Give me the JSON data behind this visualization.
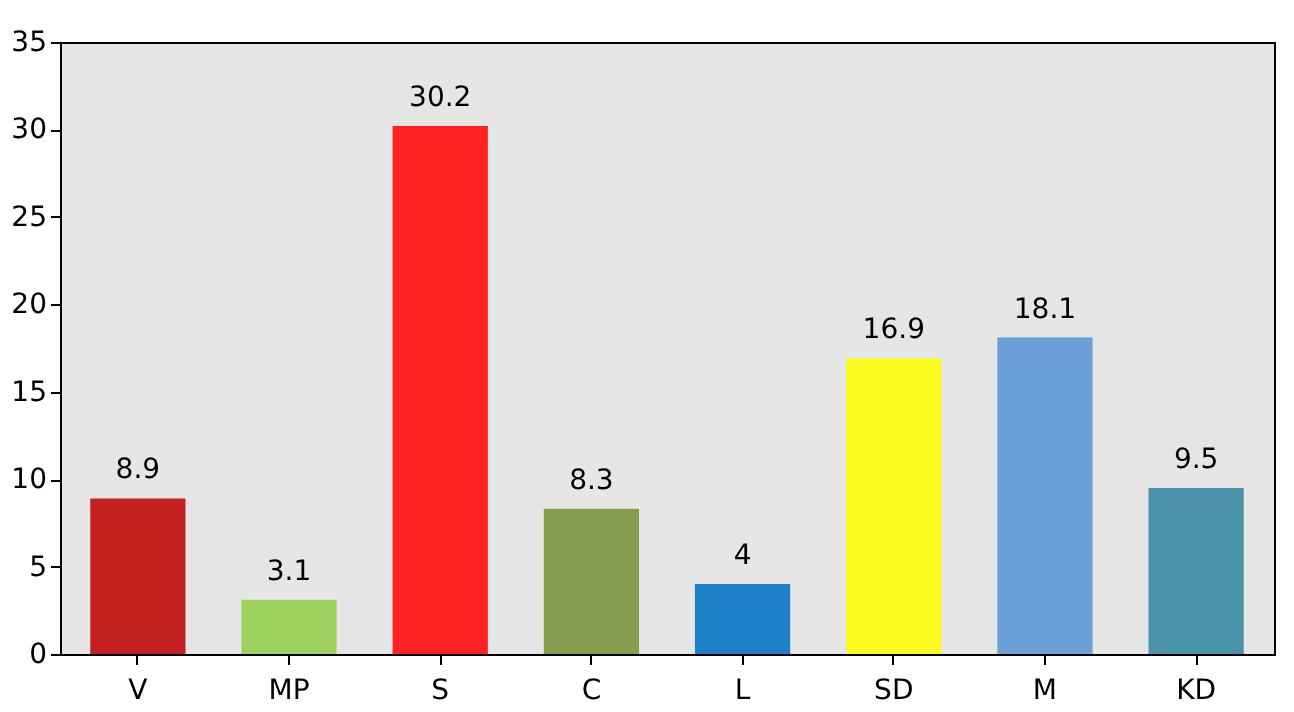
{
  "chart_data": {
    "type": "bar",
    "categories": [
      "V",
      "MP",
      "S",
      "C",
      "L",
      "SD",
      "M",
      "KD"
    ],
    "values": [
      8.9,
      3.1,
      30.2,
      8.3,
      4,
      16.9,
      18.1,
      9.5
    ],
    "colors": [
      "#c3211f",
      "#9cd25d",
      "#fe2222",
      "#869e50",
      "#1f80c8",
      "#fbf91e",
      "#6a9fd8",
      "#4a93a8"
    ],
    "ylim": [
      0,
      35
    ],
    "yticks": [
      0,
      5,
      10,
      15,
      20,
      25,
      30,
      35
    ],
    "grid": false,
    "data_labels": true
  }
}
